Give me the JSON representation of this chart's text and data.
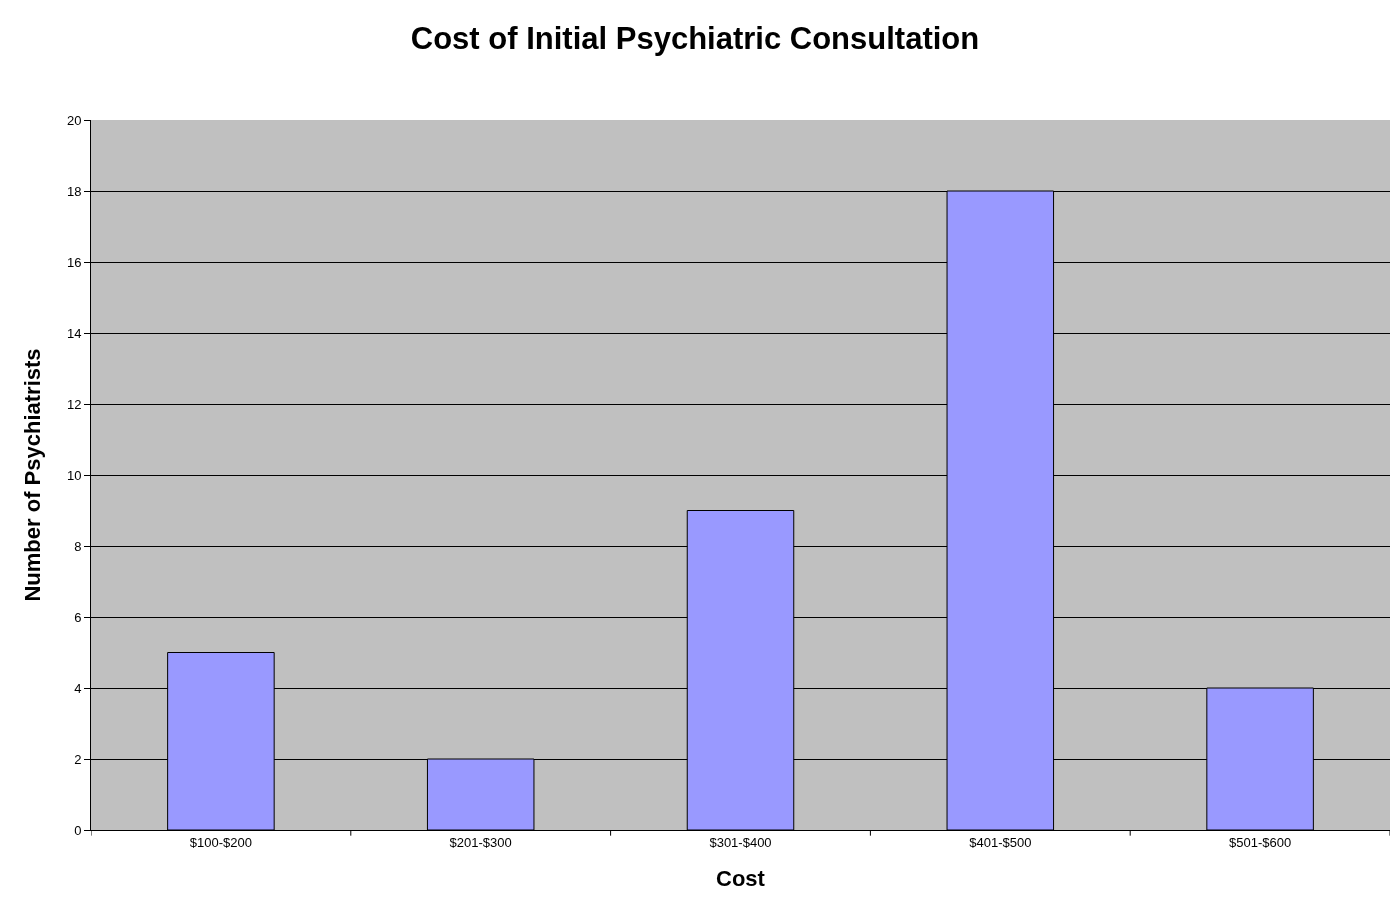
{
  "chart_data": {
    "type": "bar",
    "title": "Cost of Initial Psychiatric Consultation",
    "xlabel": "Cost",
    "ylabel": "Number of Psychiatrists",
    "categories": [
      "$100-$200",
      "$201-$300",
      "$301-$400",
      "$401-$500",
      "$501-$600"
    ],
    "values": [
      5,
      2,
      9,
      18,
      4
    ],
    "color": "#9999ff",
    "ylim": [
      0,
      20
    ],
    "yticks": [
      0,
      2,
      4,
      6,
      8,
      10,
      12,
      14,
      16,
      18,
      20
    ],
    "grid": "y"
  }
}
